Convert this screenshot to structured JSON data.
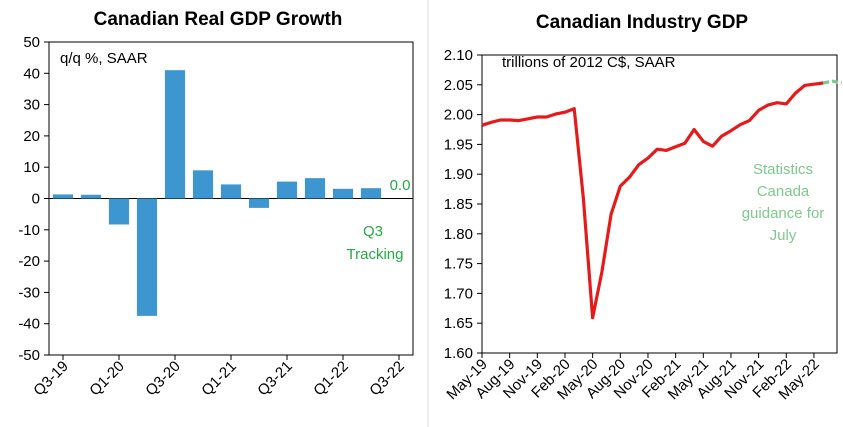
{
  "chart_data": [
    {
      "type": "bar",
      "title": "Canadian Real GDP Growth",
      "unit_label": "q/q %, SAAR",
      "xlabel": "",
      "ylabel": "",
      "ylim": [
        -50,
        50
      ],
      "yticks": [
        50,
        40,
        30,
        20,
        10,
        0,
        -10,
        -20,
        -30,
        -40,
        -50
      ],
      "categories": [
        "Q3-19",
        "Q4-19",
        "Q1-20",
        "Q2-20",
        "Q3-20",
        "Q4-20",
        "Q1-21",
        "Q2-21",
        "Q3-21",
        "Q4-21",
        "Q1-22",
        "Q2-22",
        "Q3-22"
      ],
      "xtick_labels": [
        "Q3-19",
        "Q1-20",
        "Q3-20",
        "Q1-21",
        "Q3-21",
        "Q1-22",
        "Q3-22"
      ],
      "values": [
        1.3,
        1.2,
        -8.3,
        -37.5,
        41,
        9,
        4.5,
        -3,
        5.4,
        6.5,
        3.1,
        3.3,
        0.0
      ],
      "color": "#3d96d0",
      "annotations": [
        {
          "text": "0.0",
          "category": "Q3-22"
        },
        {
          "text": "Q3",
          "category": "Q3-22"
        },
        {
          "text": "Tracking",
          "category": "Q3-22"
        }
      ]
    },
    {
      "type": "line",
      "title": "Canadian Industry GDP",
      "unit_label": "trillions of 2012 C$, SAAR",
      "xlabel": "",
      "ylabel": "",
      "ylim": [
        1.6,
        2.1
      ],
      "yticks": [
        "2.10",
        "2.05",
        "2.00",
        "1.95",
        "1.90",
        "1.85",
        "1.80",
        "1.75",
        "1.70",
        "1.65",
        "1.60"
      ],
      "xtick_labels": [
        "May-19",
        "Aug-19",
        "Nov-19",
        "Feb-20",
        "May-20",
        "Aug-20",
        "Nov-20",
        "Feb-21",
        "May-21",
        "Aug-21",
        "Nov-21",
        "Feb-22",
        "May-22"
      ],
      "series": [
        {
          "name": "Industry GDP",
          "color": "#e51b1b",
          "values": [
            1.982,
            1.987,
            1.991,
            1.991,
            1.99,
            1.993,
            1.996,
            1.996,
            2.001,
            2.004,
            2.01,
            1.859,
            1.659,
            1.736,
            1.833,
            1.88,
            1.895,
            1.916,
            1.927,
            1.942,
            1.94,
            1.946,
            1.952,
            1.975,
            1.955,
            1.947,
            1.964,
            1.973,
            1.983,
            1.99,
            2.007,
            2.016,
            2.02,
            2.018,
            2.036,
            2.049,
            2.051,
            2.053
          ]
        },
        {
          "name": "Statistics Canada guidance",
          "color": "#7fc88d",
          "values": [
            2.056,
            2.053
          ]
        }
      ],
      "annotations": [
        {
          "text": "Statistics"
        },
        {
          "text": "Canada"
        },
        {
          "text": "guidance for"
        },
        {
          "text": "July"
        }
      ]
    }
  ]
}
